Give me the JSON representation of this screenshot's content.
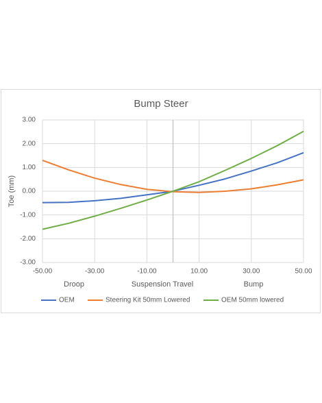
{
  "chart_data": {
    "type": "line",
    "title": "Bump Steer",
    "x_label": "Suspension Travel",
    "y_label": "Toe (mm)",
    "annotations": [
      "Droop",
      "Bump"
    ],
    "x": [
      -50,
      -40,
      -30,
      -20,
      -10,
      0,
      10,
      20,
      30,
      40,
      50
    ],
    "series": [
      {
        "name": "OEM",
        "color": "#4472c4",
        "values": [
          -0.48,
          -0.47,
          -0.4,
          -0.3,
          -0.15,
          0,
          0.25,
          0.52,
          0.85,
          1.2,
          1.62
        ]
      },
      {
        "name": "Steering Kit 50mm Lowered",
        "color": "#ed7d31",
        "values": [
          1.3,
          0.9,
          0.55,
          0.28,
          0.08,
          -0.02,
          -0.05,
          0.0,
          0.1,
          0.27,
          0.48
        ]
      },
      {
        "name": "OEM 50mm lowered",
        "color": "#70ad47",
        "values": [
          -1.6,
          -1.35,
          -1.05,
          -0.72,
          -0.37,
          0,
          0.4,
          0.88,
          1.38,
          1.92,
          2.52
        ]
      }
    ],
    "xlim": [
      -50,
      50
    ],
    "xticks": [
      {
        "value": -50,
        "label": "-50.00"
      },
      {
        "value": -30,
        "label": "-30.00"
      },
      {
        "value": -10,
        "label": "-10.00"
      },
      {
        "value": 10,
        "label": "10.00"
      },
      {
        "value": 30,
        "label": "30.00"
      },
      {
        "value": 50,
        "label": "50.00"
      }
    ],
    "ylim": [
      -3,
      3
    ],
    "yticks": [
      {
        "value": -3,
        "label": "-3.00"
      },
      {
        "value": -2,
        "label": "-2.00"
      },
      {
        "value": -1,
        "label": "-1.00"
      },
      {
        "value": 0,
        "label": "0.00"
      },
      {
        "value": 1,
        "label": "1.00"
      },
      {
        "value": 2,
        "label": "2.00"
      },
      {
        "value": 3,
        "label": "3.00"
      }
    ],
    "grid": true,
    "legend": "bottom"
  }
}
